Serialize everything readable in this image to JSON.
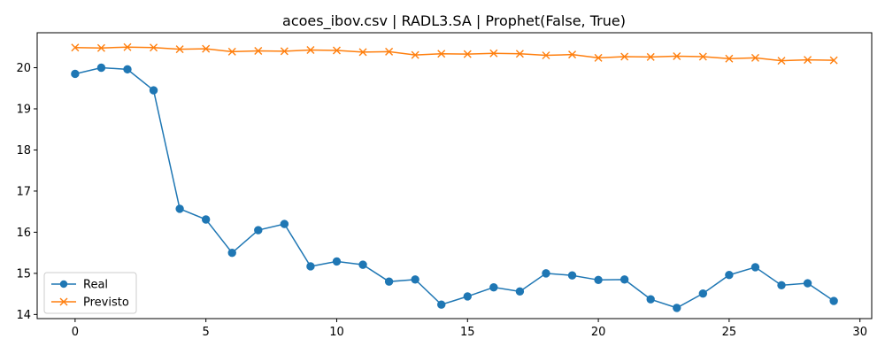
{
  "chart_data": {
    "type": "line",
    "title": "acoes_ibov.csv | RADL3.SA | Prophet(False, True)",
    "xlabel": "",
    "ylabel": "",
    "xlim": [
      -1.45,
      30.45
    ],
    "ylim": [
      13.9,
      20.85
    ],
    "x_ticks": [
      0,
      5,
      10,
      15,
      20,
      25,
      30
    ],
    "y_ticks": [
      14,
      15,
      16,
      17,
      18,
      19,
      20
    ],
    "grid": false,
    "legend_position": "lower-left",
    "x": [
      0,
      1,
      2,
      3,
      4,
      5,
      6,
      7,
      8,
      9,
      10,
      11,
      12,
      13,
      14,
      15,
      16,
      17,
      18,
      19,
      20,
      21,
      22,
      23,
      24,
      25,
      26,
      27,
      28,
      29
    ],
    "series": [
      {
        "name": "Real",
        "color": "#1f77b4",
        "marker": "circle",
        "values": [
          19.85,
          20.0,
          19.96,
          19.45,
          16.57,
          16.31,
          15.5,
          16.05,
          16.2,
          15.17,
          15.29,
          15.21,
          14.8,
          14.85,
          14.24,
          14.44,
          14.66,
          14.56,
          15.0,
          14.95,
          14.84,
          14.85,
          14.37,
          14.16,
          14.51,
          14.96,
          15.15,
          14.71,
          14.76,
          14.33
        ]
      },
      {
        "name": "Previsto",
        "color": "#ff7f0e",
        "marker": "x",
        "values": [
          20.49,
          20.48,
          20.5,
          20.49,
          20.45,
          20.46,
          20.39,
          20.41,
          20.4,
          20.43,
          20.42,
          20.38,
          20.39,
          20.31,
          20.34,
          20.33,
          20.35,
          20.34,
          20.3,
          20.32,
          20.24,
          20.27,
          20.26,
          20.28,
          20.27,
          20.22,
          20.24,
          20.17,
          20.19,
          20.18
        ]
      }
    ]
  }
}
